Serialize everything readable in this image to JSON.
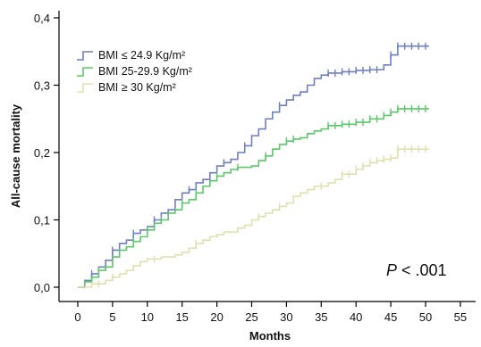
{
  "chart_data": {
    "type": "line",
    "xlabel": "Months",
    "ylabel": "All-cause mortality",
    "xlim": [
      0,
      55
    ],
    "ylim": [
      0,
      0.4
    ],
    "x_ticks": [
      0,
      5,
      10,
      15,
      20,
      25,
      30,
      35,
      40,
      45,
      50,
      55
    ],
    "y_ticks": [
      0,
      0.1,
      0.2,
      0.3,
      0.4
    ],
    "x_tick_labels": [
      "0",
      "5",
      "10",
      "15",
      "20",
      "25",
      "30",
      "35",
      "40",
      "45",
      "50",
      "55"
    ],
    "y_tick_labels": [
      "0,0",
      "0,1",
      "0,2",
      "0,3",
      "0,4"
    ],
    "grid": false,
    "legend_position": "top-left",
    "annotation": {
      "italic": "P",
      "rest": " < .001"
    },
    "series": [
      {
        "name": "BMI ≤ 24.9 Kg/m²",
        "color": "#6f7fc2",
        "steps": [
          [
            0,
            0
          ],
          [
            1,
            0.01
          ],
          [
            2,
            0.02
          ],
          [
            3,
            0.03
          ],
          [
            4,
            0.04
          ],
          [
            5,
            0.055
          ],
          [
            6,
            0.065
          ],
          [
            7,
            0.07
          ],
          [
            8,
            0.08
          ],
          [
            9,
            0.085
          ],
          [
            10,
            0.09
          ],
          [
            11,
            0.1
          ],
          [
            12,
            0.11
          ],
          [
            13,
            0.115
          ],
          [
            14,
            0.13
          ],
          [
            15,
            0.14
          ],
          [
            16,
            0.145
          ],
          [
            17,
            0.155
          ],
          [
            18,
            0.16
          ],
          [
            19,
            0.17
          ],
          [
            20,
            0.18
          ],
          [
            21,
            0.185
          ],
          [
            22,
            0.19
          ],
          [
            23,
            0.2
          ],
          [
            24,
            0.21
          ],
          [
            25,
            0.225
          ],
          [
            26,
            0.235
          ],
          [
            27,
            0.25
          ],
          [
            28,
            0.26
          ],
          [
            29,
            0.27
          ],
          [
            30,
            0.278
          ],
          [
            31,
            0.285
          ],
          [
            32,
            0.29
          ],
          [
            33,
            0.3
          ],
          [
            34,
            0.31
          ],
          [
            35,
            0.315
          ],
          [
            36,
            0.318
          ],
          [
            38,
            0.32
          ],
          [
            40,
            0.322
          ],
          [
            42,
            0.323
          ],
          [
            44,
            0.33
          ],
          [
            45,
            0.345
          ],
          [
            46,
            0.358
          ],
          [
            50.5,
            0.358
          ]
        ],
        "censor_x": [
          2,
          5,
          8,
          11,
          16,
          21,
          24,
          29,
          36,
          37,
          38,
          39,
          40,
          41,
          42,
          43,
          45,
          46,
          47,
          48,
          49,
          50
        ]
      },
      {
        "name": "BMI 25-29.9 Kg/m²",
        "color": "#5cc86a",
        "steps": [
          [
            0,
            0
          ],
          [
            1,
            0.008
          ],
          [
            2,
            0.015
          ],
          [
            3,
            0.025
          ],
          [
            4,
            0.03
          ],
          [
            5,
            0.045
          ],
          [
            6,
            0.055
          ],
          [
            7,
            0.06
          ],
          [
            8,
            0.068
          ],
          [
            9,
            0.075
          ],
          [
            10,
            0.085
          ],
          [
            11,
            0.095
          ],
          [
            12,
            0.1
          ],
          [
            13,
            0.11
          ],
          [
            14,
            0.115
          ],
          [
            15,
            0.125
          ],
          [
            16,
            0.13
          ],
          [
            17,
            0.14
          ],
          [
            18,
            0.15
          ],
          [
            19,
            0.158
          ],
          [
            20,
            0.165
          ],
          [
            21,
            0.17
          ],
          [
            22,
            0.175
          ],
          [
            23,
            0.178
          ],
          [
            25,
            0.18
          ],
          [
            26,
            0.188
          ],
          [
            27,
            0.195
          ],
          [
            28,
            0.205
          ],
          [
            29,
            0.212
          ],
          [
            30,
            0.217
          ],
          [
            31,
            0.22
          ],
          [
            32,
            0.222
          ],
          [
            33,
            0.228
          ],
          [
            34,
            0.232
          ],
          [
            35,
            0.235
          ],
          [
            36,
            0.24
          ],
          [
            38,
            0.242
          ],
          [
            40,
            0.245
          ],
          [
            42,
            0.25
          ],
          [
            44,
            0.255
          ],
          [
            45,
            0.26
          ],
          [
            46,
            0.265
          ],
          [
            50.5,
            0.265
          ]
        ],
        "censor_x": [
          3,
          8,
          10,
          12,
          15,
          17,
          20,
          23,
          27,
          30,
          31,
          36,
          37,
          38,
          39,
          40,
          41,
          42,
          43,
          44,
          45,
          46,
          47,
          48,
          49,
          50
        ]
      },
      {
        "name": "BMI ≥ 30 Kg/m²",
        "color": "#e0e0ae",
        "steps": [
          [
            0,
            0
          ],
          [
            2,
            0.005
          ],
          [
            4,
            0.01
          ],
          [
            5,
            0.015
          ],
          [
            6,
            0.02
          ],
          [
            7,
            0.025
          ],
          [
            8,
            0.032
          ],
          [
            9,
            0.038
          ],
          [
            10,
            0.042
          ],
          [
            12,
            0.045
          ],
          [
            14,
            0.048
          ],
          [
            15,
            0.052
          ],
          [
            16,
            0.058
          ],
          [
            17,
            0.065
          ],
          [
            18,
            0.07
          ],
          [
            19,
            0.075
          ],
          [
            20,
            0.078
          ],
          [
            21,
            0.082
          ],
          [
            23,
            0.088
          ],
          [
            24,
            0.092
          ],
          [
            25,
            0.1
          ],
          [
            26,
            0.105
          ],
          [
            27,
            0.11
          ],
          [
            28,
            0.115
          ],
          [
            29,
            0.12
          ],
          [
            30,
            0.125
          ],
          [
            31,
            0.135
          ],
          [
            32,
            0.14
          ],
          [
            33,
            0.145
          ],
          [
            34,
            0.15
          ],
          [
            36,
            0.155
          ],
          [
            37,
            0.16
          ],
          [
            38,
            0.168
          ],
          [
            40,
            0.175
          ],
          [
            41,
            0.18
          ],
          [
            42,
            0.185
          ],
          [
            43,
            0.188
          ],
          [
            44,
            0.19
          ],
          [
            45,
            0.192
          ],
          [
            46,
            0.205
          ],
          [
            50.5,
            0.205
          ]
        ],
        "censor_x": [
          3,
          5,
          11,
          17,
          26,
          29,
          35,
          38,
          39,
          40,
          41,
          42,
          43,
          44,
          45,
          46,
          47,
          48,
          49,
          50
        ]
      }
    ]
  }
}
